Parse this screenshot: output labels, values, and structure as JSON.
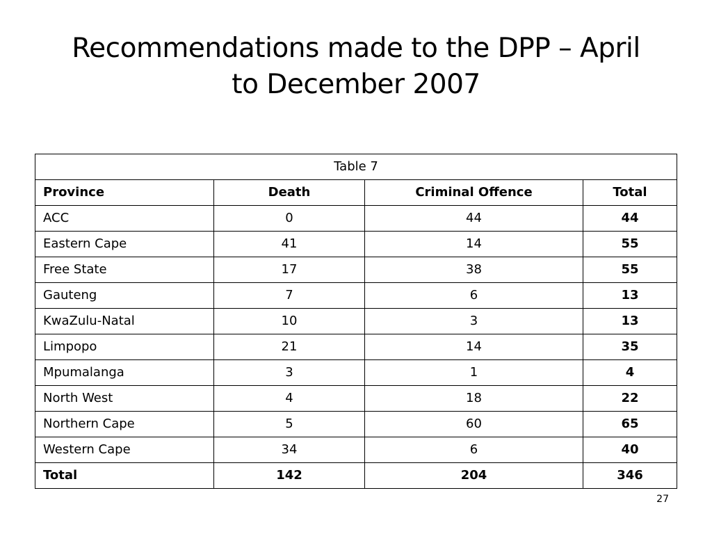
{
  "title": {
    "line1": "Recommendations made to the DPP – April",
    "line2": "to December 2007"
  },
  "table": {
    "caption": "Table 7",
    "headers": [
      "Province",
      "Death",
      "Criminal Offence",
      "Total"
    ],
    "rows": [
      [
        "ACC",
        "0",
        "44",
        "44"
      ],
      [
        "Eastern Cape",
        "41",
        "14",
        "55"
      ],
      [
        "Free State",
        "17",
        "38",
        "55"
      ],
      [
        "Gauteng",
        "7",
        "6",
        "13"
      ],
      [
        "KwaZulu-Natal",
        "10",
        "3",
        "13"
      ],
      [
        "Limpopo",
        "21",
        "14",
        "35"
      ],
      [
        "Mpumalanga",
        "3",
        "1",
        "4"
      ],
      [
        "North West",
        "4",
        "18",
        "22"
      ],
      [
        "Northern Cape",
        "5",
        "60",
        "65"
      ],
      [
        "Western Cape",
        "34",
        "6",
        "40"
      ]
    ],
    "totals": [
      "Total",
      "142",
      "204",
      "346"
    ]
  },
  "page_number": "27"
}
